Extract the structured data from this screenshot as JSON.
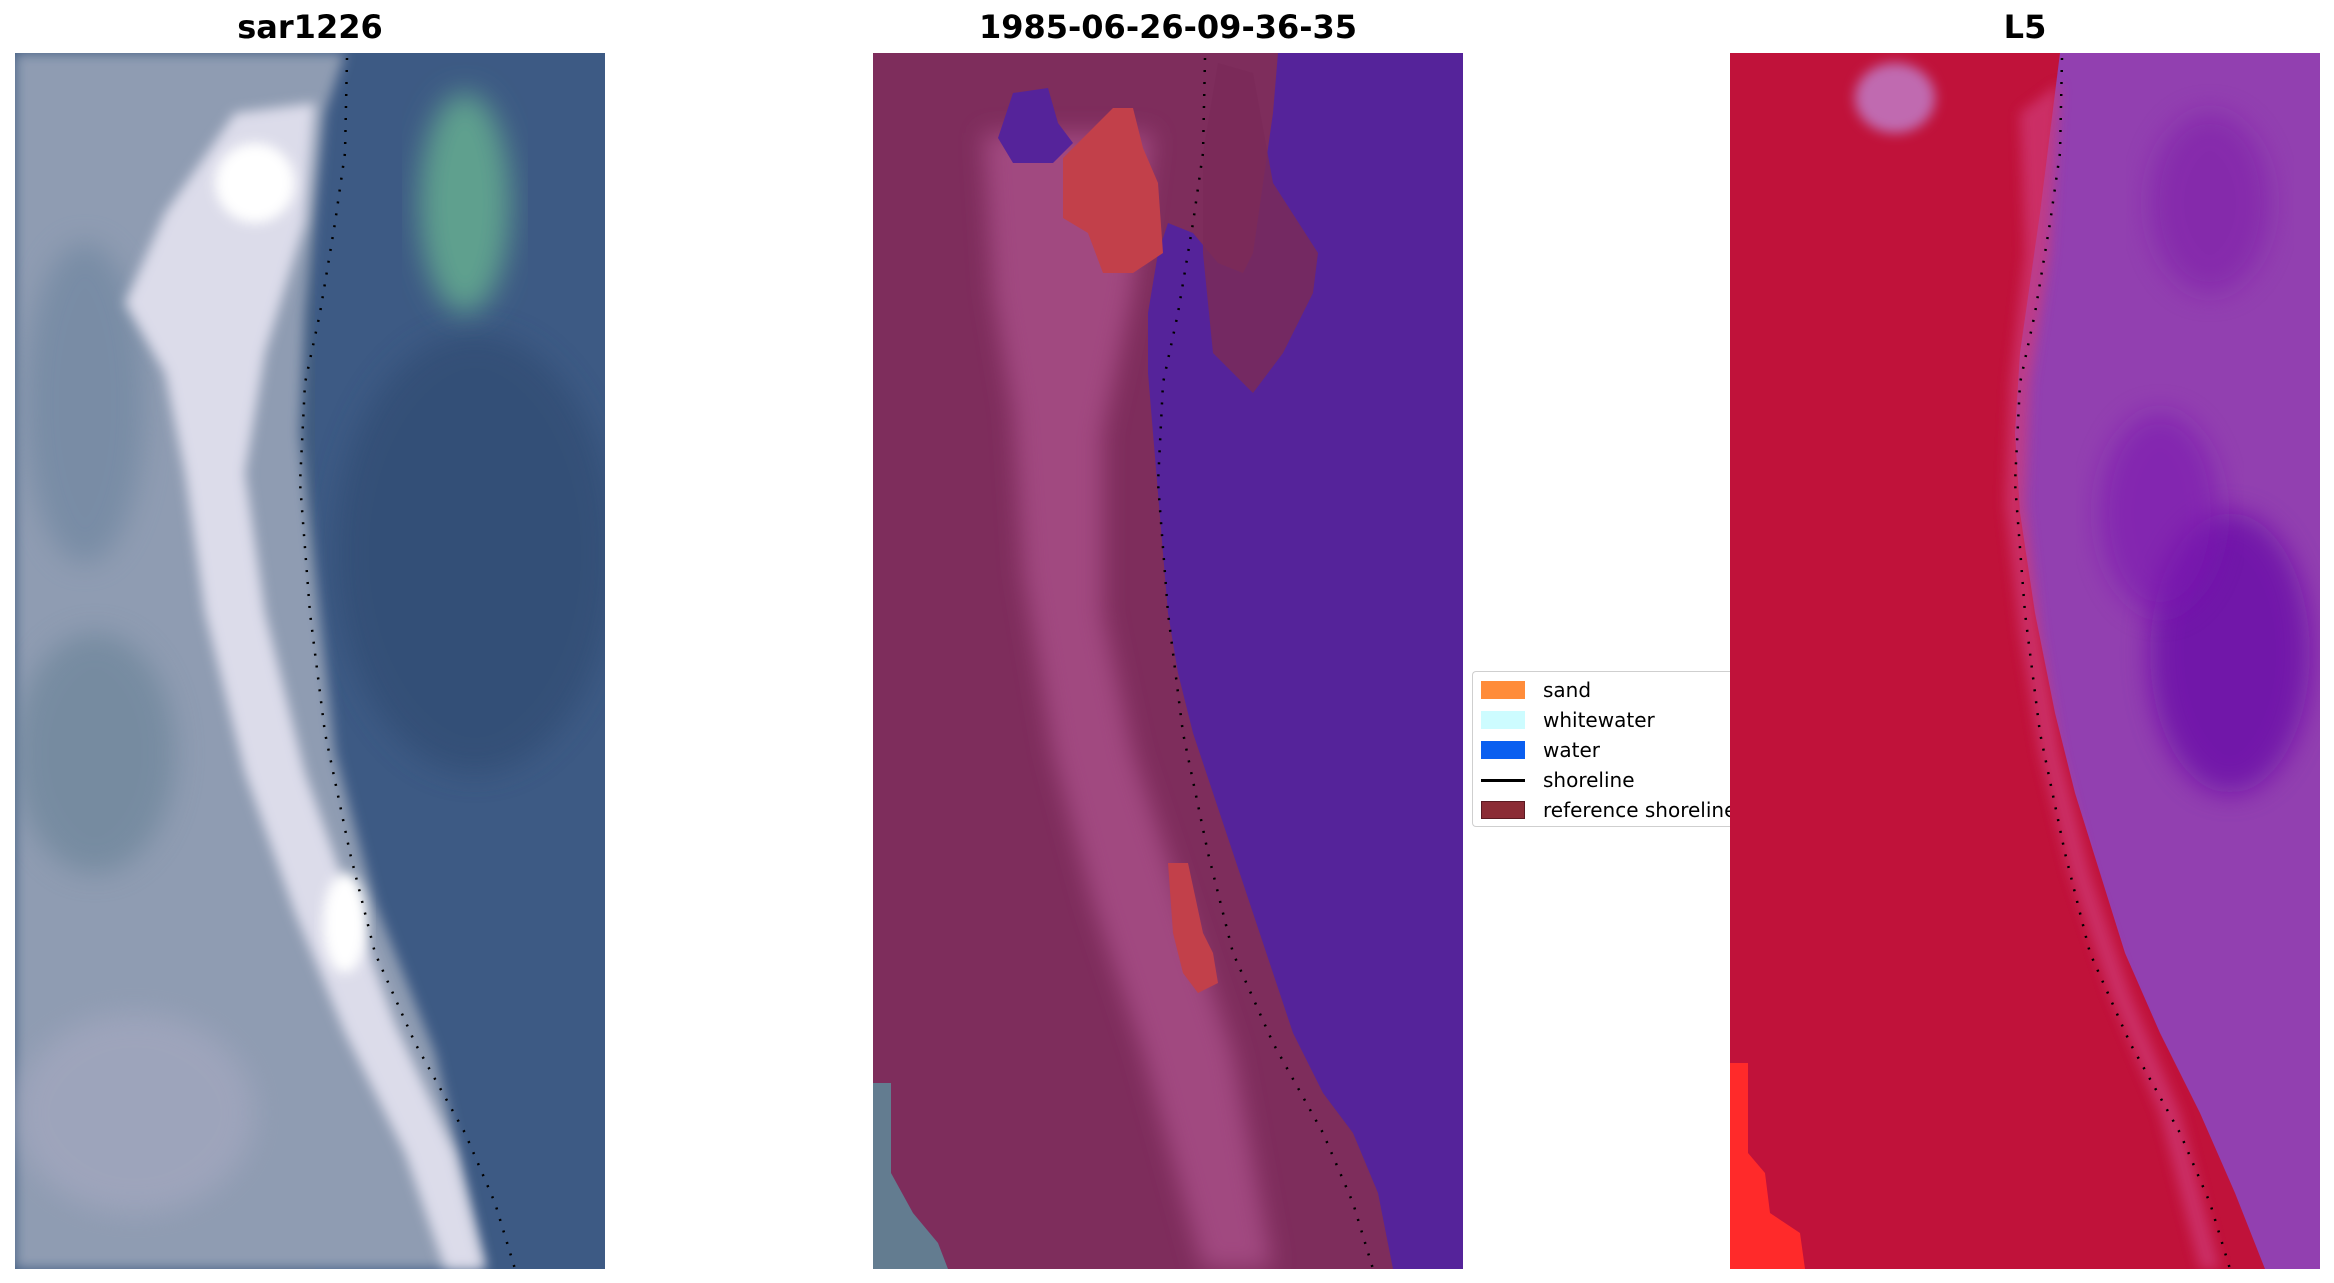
{
  "panels": [
    {
      "title": "sar1226",
      "kind": "rgb-image"
    },
    {
      "title": "1985-06-26-09-36-35",
      "kind": "classified-image"
    },
    {
      "title": "L5",
      "kind": "false-color-image"
    }
  ],
  "legend": {
    "items": [
      {
        "label": "sand",
        "color": "#ff8c3a",
        "type": "patch"
      },
      {
        "label": "whitewater",
        "color": "#cdfcff",
        "type": "patch"
      },
      {
        "label": "water",
        "color": "#0a5ff0",
        "type": "patch"
      },
      {
        "label": "shoreline",
        "color": "#000000",
        "type": "line"
      },
      {
        "label": "reference shoreline",
        "color": "#8b2c35",
        "type": "patch"
      }
    ]
  },
  "colors": {
    "rgb_land": "#9aa2b8",
    "rgb_sand": "#e8e8f2",
    "rgb_water": "#3d5a80",
    "rgb_algae": "#5f9a8c",
    "class_land": "#83305f",
    "class_water": "#55239a",
    "class_sand": "#c04048",
    "false_land": "#c0123a",
    "false_water": "#8a40b0",
    "false_bright_red": "#ff2a2a"
  }
}
